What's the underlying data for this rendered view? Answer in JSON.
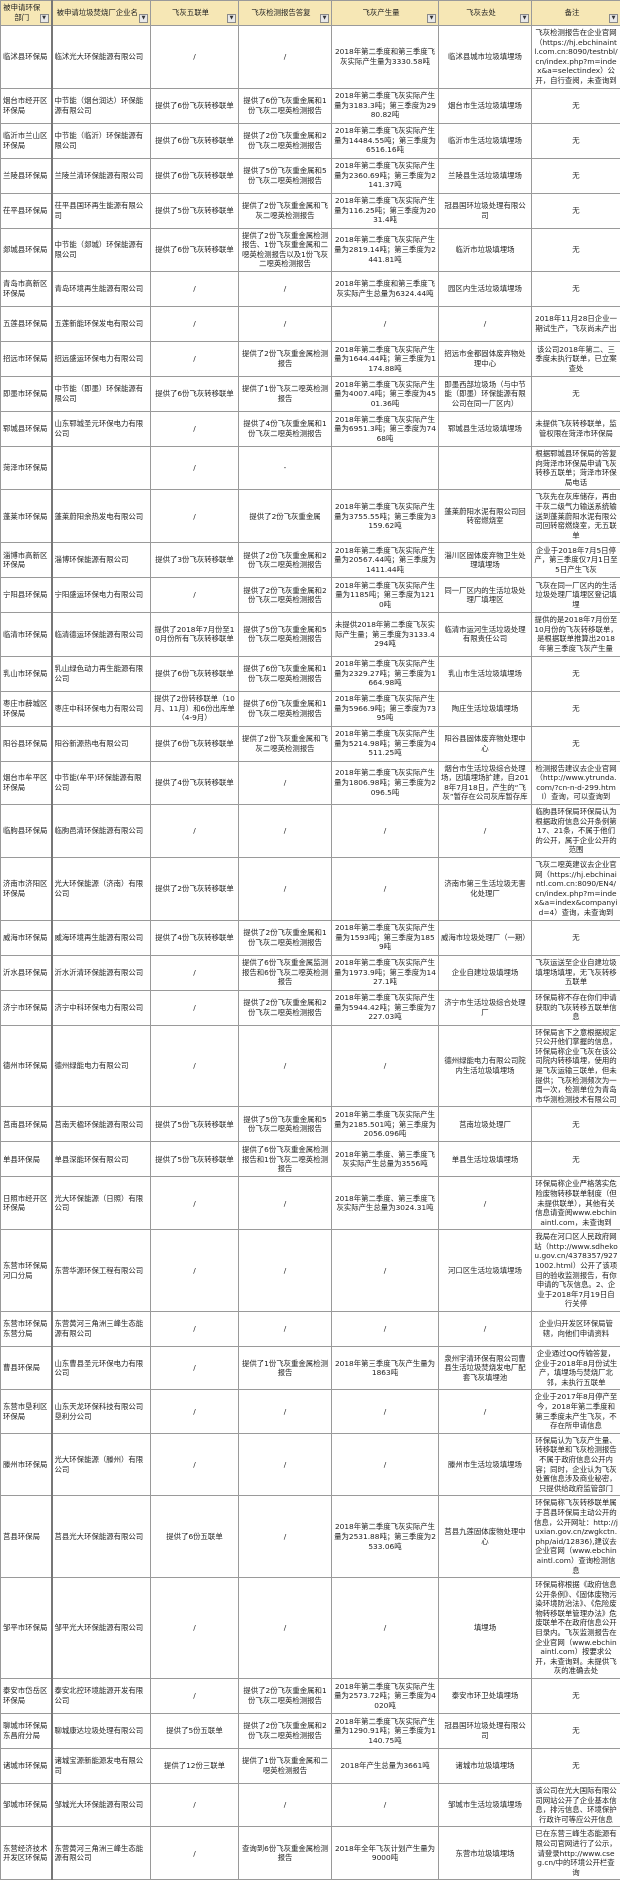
{
  "headers": [
    "被申请环保部门",
    "被申请垃圾焚烧厂企业名",
    "飞灰五联单",
    "飞灰检测报告答复",
    "飞灰产生量",
    "飞灰去处",
    "备注"
  ],
  "filter_icon": "dropdown-arrow-icon",
  "colors": {
    "header_bg": "#f6e7b5",
    "border": "#9a9a9a"
  },
  "rows": [
    [
      "临沭县环保局",
      "临沭光大环保能源有限公司",
      "/",
      "/",
      "2018年第二季度和第三季度飞灰实际产生量为3330.58吨",
      "临沭县城市垃圾填埋场",
      "飞灰检测报告在企业官网（https://hj.ebchinaintl.com.cn:8090/testnbl/cn/index.php?m=index&a=selectindex）公开，自行查阅，未查询到"
    ],
    [
      "烟台市经开区环保局",
      "中节能（烟台润达）环保能源有限公司",
      "提供了6份飞灰转移联单",
      "提供了6份飞灰重金属和1份飞灰二噁英检测报告",
      "2018年第二季度飞灰实际产生量为3183.3吨；第三季度为2980.82吨",
      "烟台市生活垃圾填埋场",
      "无"
    ],
    [
      "临沂市兰山区环保局",
      "中节能（临沂）环保能源有限公司",
      "提供了6份飞灰转移联单",
      "提供了2份飞灰重金属和2份飞灰二噁英检测报告",
      "2018年第二季度飞灰实际产生量为14484.55吨；第三季度为6516.16吨",
      "临沂市生活垃圾填埋场",
      "无"
    ],
    [
      "兰陵县环保局",
      "兰陵兰清环保能源有限公司",
      "提供了6份飞灰转移联单",
      "提供了5份飞灰重金属和5份飞灰二噁英检测报告",
      "2018年第二季度飞灰实际产生量为2360.69吨；第三季度为2141.37吨",
      "兰陵县生活垃圾填埋场",
      "无"
    ],
    [
      "茌平县环保局",
      "茌平县国环再生能源有限公司",
      "提供了5份飞灰转移联单",
      "提供了2份飞灰重金属和飞灰二噁英检测报告",
      "2018年第二季度飞灰实际产生量为116.25吨；第三季度为2031.4吨",
      "冠县国环垃圾处理有限公司",
      "无"
    ],
    [
      "郯城县环保局",
      "中节能（郯城）环保能源有限公司",
      "提供了6份飞灰转移联单",
      "提供了2份飞灰重金属检测报告、1份飞灰重金属和二噁英检测报告以及1份飞灰二噁英检测报告",
      "2018年第二季度飞灰实际产生量为2819.14吨；第三季度为2441.81吨",
      "临沂市垃圾填埋场",
      "无"
    ],
    [
      "青岛市高新区环保局",
      "青岛环境再生能源有限公司",
      "/",
      "/",
      "2018年第二季度和第三季度飞灰实际产生总量为6324.44吨",
      "园区内生活垃圾填埋场",
      "无"
    ],
    [
      "五莲县环保局",
      "五莲新能环保发电有限公司",
      "/",
      "/",
      "/",
      "/",
      "2018年11月28日企业一期试生产，飞灰尚未产出"
    ],
    [
      "招远市环保局",
      "招远盛运环保电力有限公司",
      "/",
      "提供了2份飞灰重金属检测报告",
      "2018年第二季度飞灰实际产生量为1644.44吨；第三季度为1174.88吨",
      "招远市金都固体废弃物处理中心",
      "该公司2018年第二、三季度未执行联单，已立案查处"
    ],
    [
      "即墨市环保局",
      "中节能（即墨）环保能源有限公司",
      "提供了6份飞灰转移联单",
      "提供了1份飞灰二噁英检测报告",
      "2018年第二季度飞灰实际产生量为4007.4吨；第三季度为4501.36吨",
      "即墨西部垃圾场（与中节能（即墨）环保能源有限公司在同一厂区内）",
      "无"
    ],
    [
      "郓城县环保局",
      "山东郓城圣元环保电力有限公司",
      "/",
      "提供了4份飞灰重金属和1份飞灰二噁英检测报告",
      "2018年第二季度飞灰实际产生量为6951.3吨；第三季度为7468吨",
      "郓城县生活垃圾填埋场",
      "未提供飞灰转移联单，监管权限在菏泽市环保局"
    ],
    [
      "菏泽市环保局",
      "",
      "/",
      "-",
      "",
      "",
      "根据郓城县环保局的答复向菏泽市环保局申请飞灰转移五联单；菏泽市环保局电话"
    ],
    [
      "蓬莱市环保局",
      "蓬莱蔚阳余热发电有限公司",
      "/",
      "提供了2份飞灰重金属",
      "2018年第二季度飞灰实际产生量为3755.55吨；第三季度为3159.62吨",
      "蓬莱蔚阳水泥有限公司回转窑燃烧室",
      "飞灰先在灰库储存，再由干灰二级气力输送系统输送到蓬莱蔚阳水泥有限公司回转窑燃烧室，无五联单"
    ],
    [
      "淄博市高新区环保局",
      "淄博环保能源有限公司",
      "提供了3份飞灰转移联单",
      "提供了2份飞灰重金属和2份飞灰二噁英检测报告",
      "2018年第二季度飞灰实际产生量为20567.44吨；第三季度为1411.44吨",
      "淄川区固体废弃物卫生处理填埋场",
      "企业于2018年7月5日停产，第三季度仅7月1日至5日产生飞灰"
    ],
    [
      "宁阳县环保局",
      "宁阳盛运环保电力有限公司",
      "/",
      "提供了2份飞灰重金属和2份飞灰二噁英检测报告",
      "2018年第二季度飞灰实际产生量为1185吨；第三季度为1210吨",
      "同一厂区内的生活垃圾处理厂填埋区",
      "飞灰在同一厂区内的生活垃圾处理厂填埋区登记填埋"
    ],
    [
      "临清市环保局",
      "临清德运环保能源有限公司",
      "提供了2018年7月份至10月份所有飞灰转移联单",
      "提供了5份飞灰重金属和5份飞灰二噁英检测报告",
      "未提供2018年第二季度飞灰实际产生量；第三季度为3133.4294吨",
      "临清市运河生活垃圾处理有限责任公司",
      "提供的是2018年7月份至10月份的飞灰转移联单，是根据联单推算出2018年第三季度飞灰产生量"
    ],
    [
      "乳山市环保局",
      "乳山绿色动力再生能源有限公司",
      "提供了6份飞灰转移联单",
      "提供了6份飞灰重金属和1份飞灰二噁英检测报告",
      "2018年第二季度飞灰实际产生量为2329.27吨；第三季度为1664.98吨",
      "乳山市生活垃圾填埋场",
      "无"
    ],
    [
      "枣庄市薛城区环保局",
      "枣庄中科环保电力有限公司",
      "提供了2份转移联单（10月、11月）和6份出库单（4-9月）",
      "提供了6份飞灰重金属和1份飞灰二噁英检测报告",
      "2018年第二季度飞灰实际产生量为5966.9吨；第三季度为7395吨",
      "陶庄生活垃圾填埋场",
      "无"
    ],
    [
      "阳谷县环保局",
      "阳谷新源热电有限公司",
      "提供了6份飞灰转移联单",
      "提供了2份飞灰重金属和飞灰二噁英检测报告",
      "2018年第二季度飞灰实际产生量为5214.98吨；第三季度为4511.25吨",
      "阳谷县固体废弃物处理中心",
      "无"
    ],
    [
      "烟台市牟平区环保局",
      "中节能(牟平)环保能源有限公司",
      "提供了4份飞灰转移联单",
      "/",
      "2018年第二季度飞灰实际产生量为1806.98吨；第三季度为2096.5吨",
      "烟台市生活垃圾综合处理场，因填埋场扩建，自2018年7月18日，产生的“飞灰”暂存在公司灰库暂存库",
      "检测报告建议去企业官网（http://www.ytrunda.com/?cn-n-d-299.html）查询，可以查询到"
    ],
    [
      "临朐县环保局",
      "临朐邑清环保能源有限公司",
      "/",
      "/",
      "/",
      "/",
      "临朐县环保局环保局认为根据政府信息公开条例第17、21条，不属于他们的公开，属于企业公开的范围"
    ],
    [
      "济南市济阳区环保局",
      "光大环保能源（济南）有限公司",
      "提供了2份飞灰转移联单",
      "/",
      "/",
      "济南市第三生活垃圾无害化处理厂",
      "飞灰二噁英建议去企业官网（https://hj.ebchinaintl.com.cn:8090/EN4/cn/index.php?m=index&a=index&companyid=4）查询，未查询到"
    ],
    [
      "威海市环保局",
      "威海环境再生能源有限公司",
      "提供了4份飞灰转移联单",
      "提供了2份飞灰重金属和1份飞灰二噁英检测报告",
      "2018年第二季度飞灰实际产生量为1593吨；第三季度为1859吨",
      "威海市垃圾处理厂（一期）",
      "无"
    ],
    [
      "沂水县环保局",
      "沂水沂清环保能源有限公司",
      "/",
      "提供了6份飞灰重金属监测报告和6份飞灰二噁英检测报告",
      "2018年第二季度飞灰实际产生量为1973.9吨；第三季度为1427.1吨",
      "企业自建垃圾填埋场",
      "飞灰运送至企业自建垃圾填埋场填埋，无飞灰转移五联单"
    ],
    [
      "济宁市环保局",
      "济宁中科环保电力有限公司",
      "/",
      "提供了2份飞灰重金属和2份飞灰二噁英检测报告",
      "2018年第二季度飞灰实际产生量为5944.42吨；第三季度为7227.03吨",
      "济宁市生活垃圾综合处理厂",
      "环保局称不存在你们申请获取的飞灰转移五联单信息"
    ],
    [
      "德州市环保局",
      "德州绿能电力有限公司",
      "/",
      "/",
      "/",
      "德州绿能电力有限公司院内生活垃圾填埋场",
      "环保局言下之意根据规定只公开他们掌握的信息，环保局称企业飞灰在该公司院内转移填埋，使用的是飞灰运输三联单，但未提供；飞灰检测频次为一周一次，检测单位为青岛市华测检测技术有限公司"
    ],
    [
      "莒南县环保局",
      "莒南天楹环保能源有限公司",
      "提供了5份飞灰转移联单",
      "提供了5份飞灰重金属和5份飞灰二噁英检测报告",
      "2018年第二季度飞灰实际产生量为2185.501吨；第三季度为2056.096吨",
      "莒南垃圾处理厂",
      "无"
    ],
    [
      "单县环保局",
      "单县深能环保有限公司",
      "提供了5份飞灰转移联单",
      "提供了6份飞灰重金属检测报告和1份飞灰二噁英检测报告",
      "2018年第二季度、第三季度飞灰实际产生总量为3556吨",
      "单县生活垃圾填埋场",
      "无"
    ],
    [
      "日照市经开区环保局",
      "光大环保能源（日照）有限公司",
      "/",
      "/",
      "2018年第二季度、第三季度飞灰实际产生总量为3024.31吨",
      "/",
      "环保局称企业严格落实危险废物转移联单制度（但未提供联单），其他有关信息请查阅www.ebchinaintl.com，未查询到"
    ],
    [
      "东营市环保局河口分局",
      "东营华源环保工程有限公司",
      "/",
      "/",
      "/",
      "河口区生活垃圾填埋场",
      "我局在河口区人民政府网站（http://www.sdhekou.gov.cn/4378357/9271002.html）公开了该项目的验收监测报告，有你申请的飞灰信息。2、企业于2018年7月19日自行关停"
    ],
    [
      "东营市环保局东营分局",
      "东营黄河三角洲三峰生态能源有限公司",
      "/",
      "/",
      "/",
      "/",
      "企业归开发区环保局管辖，向他们申请资料"
    ],
    [
      "曹县环保局",
      "山东曹县圣元环保电力有限公司",
      "/",
      "提供了1份飞灰重金属检测报告",
      "2018年第三季度飞灰产生量为1863吨",
      "泉州宇清环保有限公司曹县生活垃圾焚烧发电厂配套飞灰填埋池",
      "企业通过QQ传输答复，企业于2018年8月份试生产，填埋场与焚烧厂北邻，未执行五联单"
    ],
    [
      "东营市垦利区环保局",
      "山东天龙环保科技有限公司垦利分公司",
      "/",
      "/",
      "/",
      "/",
      "企业于2017年8月停产至今，2018年第二季度和第三季度未产生飞灰，不存在所申请信息"
    ],
    [
      "滕州市环保局",
      "光大环保能源（滕州）有限公司",
      "/",
      "/",
      "/",
      "滕州市生活垃圾填埋场",
      "环保局认为飞灰产生量、转移联单和飞灰检测报告不属于政府信息公开内容；同时，企业认为飞灰处置信息涉及商业秘密，只提供给政府监管部门"
    ],
    [
      "莒县环保局",
      "莒县光大环保能源有限公司",
      "提供了6份五联单",
      "/",
      "2018年第二季度飞灰实际产生量为2531.88吨；第三季度为2533.06吨",
      "莒县九莲固体废物处理中心",
      "环保局称飞灰转移联单属于莒县环保局主动公开的信息，公开网址：http://juxian.gov.cn/zwgkctn.php/aid/12836),建议去企业官网（www.ebchinaintl.com）查询检测信息"
    ],
    [
      "邹平市环保局",
      "邹平光大环保能源有限公司",
      "/",
      "/",
      "/",
      "填埋场",
      "环保局称根据《政府信息公开条例》、《固体废物污染环境防治法》、《危险废物转移联单管理办法》危废联单不在政府信息公开目录内。飞灰监测报告在企业官网（www.ebchinaintl.com）按要求公开，未查询到。未提供飞灰的准确去处"
    ],
    [
      "泰安市岱岳区环保局",
      "泰安北控环境能源开发有限公司",
      "/",
      "提供了2份飞灰重金属和1份飞灰二噁英检测报告",
      "2018年第二季度飞灰实际产生量为2573.72吨；第三季度为4020吨",
      "泰安市环卫处填埋场",
      "无"
    ],
    [
      "聊城市环保局东昌府分局",
      "聊城康达垃圾处理有限公司",
      "提供了5份五联单",
      "提供了2份飞灰重金属和2份飞灰二噁英检测报告",
      "2018年第二季度飞灰实际产生量为1290.91吨；第三季度为1140.75吨",
      "冠县国环垃圾处理有限公司",
      "无"
    ],
    [
      "诸城市环保局",
      "诸城宝源新能源发电有限公司",
      "提供了12份三联单",
      "提供了1份飞灰重金属和二噁英检测报告",
      "2018年产生总量为3661吨",
      "诸城市垃圾填埋场",
      "无"
    ],
    [
      "邹城市环保局",
      "邹城光大环保能源有限公司",
      "/",
      "/",
      "/",
      "邹城市生活垃圾填埋场",
      "该公司在光大国际有限公司网站公开了企业基本信息，排污信息、环境保护行政许可等应公开信息"
    ],
    [
      "东营经济技术开发区环保局",
      "东营黄河三角洲三峰生态能源有限公司",
      "/",
      "查询到6份飞灰重金属检测报告",
      "2018年全年飞灰计划产生量为9000吨",
      "东营市垃圾填埋场",
      "已在东营三峰生态能源有限公司官网进行了公示，请登录http://www.cseg.cn/中的环境公开栏查询"
    ]
  ]
}
